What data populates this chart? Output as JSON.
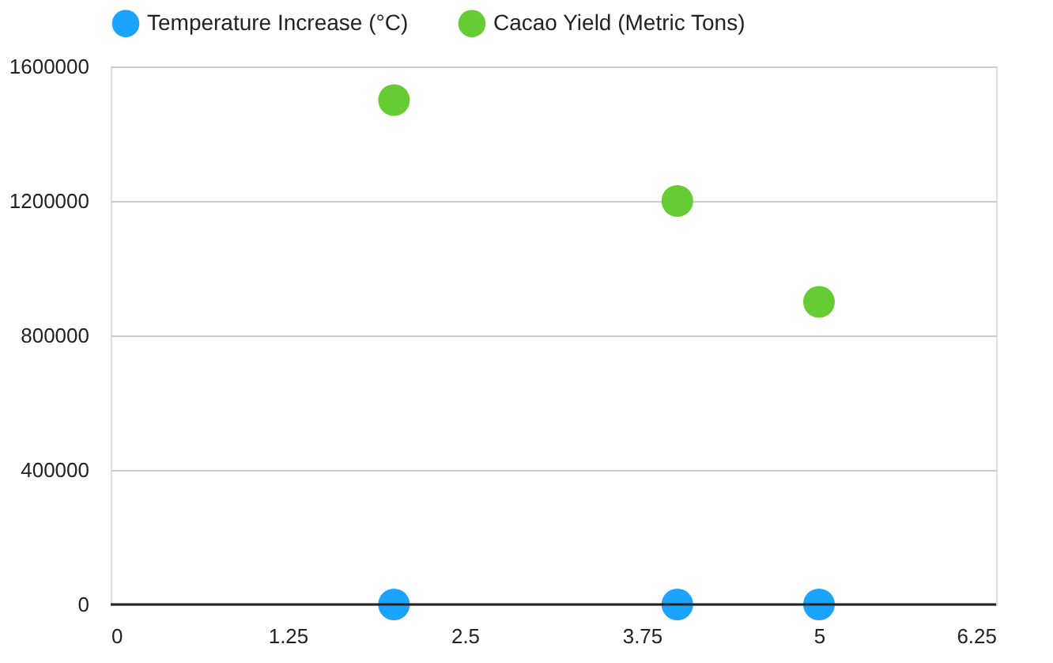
{
  "chart_data": {
    "type": "scatter",
    "x": [
      2,
      4,
      5
    ],
    "series": [
      {
        "name": "Temperature Increase (°C)",
        "color": "#1aa3ff",
        "values": [
          0,
          0,
          0
        ]
      },
      {
        "name": "Cacao Yield (Metric Tons)",
        "color": "#66cc33",
        "values": [
          1500000,
          1200000,
          900000
        ]
      }
    ],
    "xlim": [
      0,
      6.25
    ],
    "xticks": [
      0,
      1.25,
      2.5,
      3.75,
      5,
      6.25
    ],
    "ylim": [
      0,
      1600000
    ],
    "yticks": [
      0,
      400000,
      800000,
      1200000,
      1600000
    ],
    "grid": "y",
    "legend": "top",
    "marker": "circle"
  }
}
